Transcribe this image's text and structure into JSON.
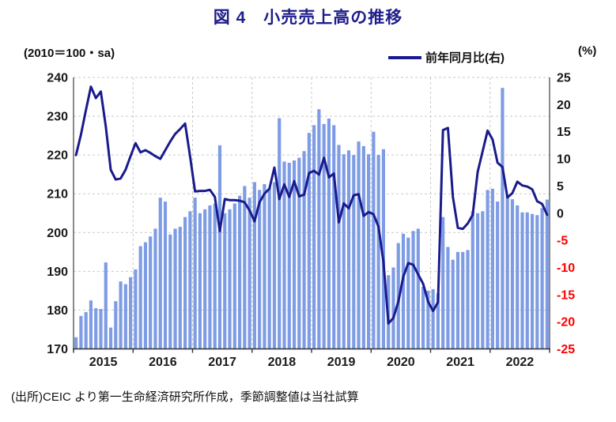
{
  "figure": {
    "title": "図 4　小売売上高の推移",
    "left_axis_caption": "(2010＝100・sa)",
    "right_axis_caption": "(%)",
    "legend_label": "前年同月比(右)",
    "footer": "(出所)CEIC より第一生命経済研究所作成，季節調整値は当社試算"
  },
  "colors": {
    "title": "#1f1d8a",
    "bar": "#7e9ce4",
    "line": "#1a1a8c",
    "text": "#1a1a1a",
    "negative_tick": "#ff0000",
    "grid": "#c9c9c9",
    "axis_side": "#595959",
    "axis_bottom": "#333333"
  },
  "chart_data": {
    "type": "bar",
    "title": "図 4　小売売上高の推移",
    "x_frequency": "monthly",
    "x_start": "2015-01",
    "x_end": "2022-12",
    "year_labels": [
      "2015",
      "2016",
      "2017",
      "2018",
      "2019",
      "2020",
      "2021",
      "2022"
    ],
    "grid": true,
    "legend_position": "top-right",
    "left_axis": {
      "caption": "(2010＝100・sa)",
      "ticks": [
        240,
        230,
        220,
        210,
        200,
        190,
        180,
        170
      ],
      "range": [
        170,
        240
      ]
    },
    "right_axis": {
      "caption": "(%)",
      "ticks": [
        25,
        20,
        15,
        10,
        5,
        0,
        -5,
        -10,
        -15,
        -20,
        -25
      ],
      "range": [
        -25,
        25
      ]
    },
    "series": [
      {
        "name": "小売売上高（2010＝100・sa）",
        "type": "bar",
        "axis": "left",
        "values": [
          173,
          178.5,
          179.5,
          182.5,
          180.5,
          180.3,
          192.3,
          175.5,
          182.3,
          187.4,
          186.7,
          188.5,
          190.5,
          196.5,
          197.5,
          199,
          201,
          209,
          208,
          199.5,
          201,
          201.5,
          204,
          205.5,
          209,
          205,
          206,
          207,
          207.5,
          222.5,
          205,
          206,
          207.5,
          209.5,
          212,
          209,
          213,
          211,
          212.5,
          211.5,
          213,
          229.5,
          218.3,
          218,
          218.6,
          219.3,
          221,
          225.7,
          227.7,
          231.8,
          228,
          229.4,
          227.7,
          222.6,
          220.2,
          221.2,
          220,
          223.5,
          222.3,
          220.2,
          226,
          220,
          221.5,
          189,
          191,
          197.3,
          199.7,
          198.7,
          200.4,
          201,
          186,
          185,
          185.4,
          184.3,
          204,
          196.3,
          193,
          195,
          195,
          195.5,
          205.5,
          205,
          205.5,
          211,
          211.3,
          208,
          237.3,
          209.6,
          208.6,
          207,
          205.2,
          205.2,
          204.8,
          204.5,
          206.3,
          208.5
        ]
      },
      {
        "name": "前年同月比(右)",
        "type": "line",
        "axis": "right",
        "values": [
          10.7,
          14.5,
          19,
          23.3,
          21.2,
          22.4,
          16,
          8,
          6.2,
          6.4,
          8,
          10.5,
          12.9,
          11.2,
          11.6,
          11.1,
          10.5,
          10,
          11.6,
          13.2,
          14.6,
          15.5,
          16.5,
          10.5,
          4,
          4.1,
          4.1,
          4.3,
          3,
          -3.3,
          2.6,
          2.4,
          2.4,
          2.3,
          2,
          0.5,
          -1.5,
          2,
          3.6,
          4.5,
          8.4,
          2.6,
          5.3,
          3,
          5.9,
          3.1,
          3.4,
          7.4,
          7.8,
          7.1,
          10.2,
          6.6,
          7.3,
          -1.7,
          1.8,
          0.9,
          3.3,
          3.5,
          -0.5,
          0.2,
          -0.2,
          -2.5,
          -9,
          -20.3,
          -19.3,
          -16.3,
          -11.7,
          -9.2,
          -9.5,
          -11.3,
          -13,
          -16.3,
          -18,
          -16.4,
          15.3,
          15.7,
          3,
          -2.7,
          -2.9,
          -1.9,
          -0.3,
          7.6,
          11.4,
          15.2,
          13.6,
          9.3,
          8.5,
          2.9,
          3.7,
          5.8,
          5.1,
          4.9,
          4.4,
          2.2,
          1.7,
          -0.3
        ]
      }
    ]
  }
}
